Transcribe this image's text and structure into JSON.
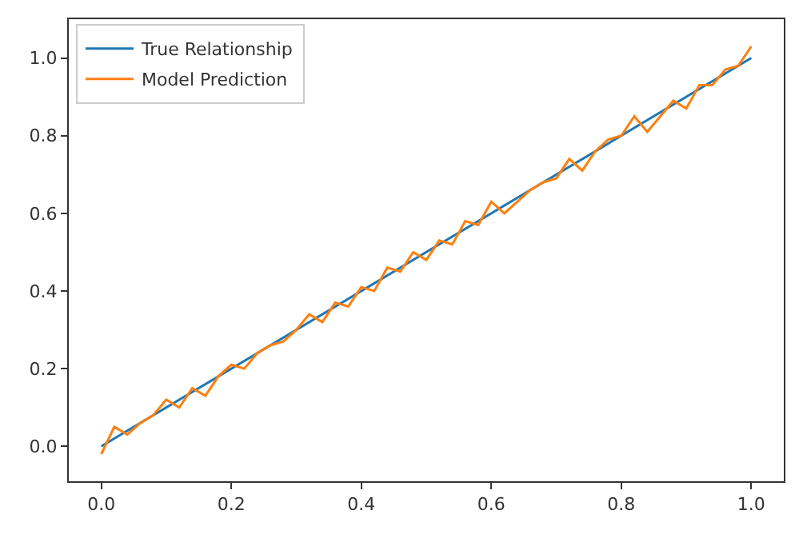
{
  "chart_data": {
    "type": "line",
    "xlim": [
      -0.05,
      1.05
    ],
    "ylim": [
      -0.09,
      1.1
    ],
    "xticks": [
      {
        "value": 0,
        "label": "0.0"
      },
      0.2,
      0.4,
      0.6,
      0.8,
      {
        "value": 1,
        "label": "1.0"
      }
    ],
    "yticks": [
      {
        "value": 0,
        "label": "0.0"
      },
      0.2,
      0.4,
      0.6,
      0.8,
      {
        "value": 1,
        "label": "1.0"
      }
    ],
    "grid": false,
    "legend": "top left",
    "marker": "none",
    "line_style": "solid",
    "series": [
      {
        "name": "True Relationship",
        "color": "#1f77b4",
        "x": [
          0,
          1
        ],
        "values": [
          0,
          1
        ]
      },
      {
        "name": "Model Prediction",
        "color": "#ff7f0e",
        "x": [
          0,
          0.02,
          0.04,
          0.06,
          0.08,
          0.1,
          0.12,
          0.14,
          0.16,
          0.18,
          0.2,
          0.22,
          0.24,
          0.26,
          0.28,
          0.3,
          0.32,
          0.34,
          0.36,
          0.38,
          0.4,
          0.42,
          0.44,
          0.46,
          0.48,
          0.5,
          0.52,
          0.54,
          0.56,
          0.58,
          0.6,
          0.62,
          0.64,
          0.66,
          0.68,
          0.7,
          0.72,
          0.74,
          0.76,
          0.78,
          0.8,
          0.82,
          0.84,
          0.86,
          0.88,
          0.9,
          0.92,
          0.94,
          0.96,
          0.98,
          1
        ],
        "values": [
          -0.02,
          0.05,
          0.03,
          0.06,
          0.08,
          0.12,
          0.1,
          0.15,
          0.13,
          0.18,
          0.21,
          0.2,
          0.24,
          0.26,
          0.27,
          0.3,
          0.34,
          0.32,
          0.37,
          0.36,
          0.41,
          0.4,
          0.46,
          0.45,
          0.5,
          0.48,
          0.53,
          0.52,
          0.58,
          0.57,
          0.63,
          0.6,
          0.63,
          0.66,
          0.68,
          0.69,
          0.74,
          0.71,
          0.76,
          0.79,
          0.8,
          0.85,
          0.81,
          0.85,
          0.89,
          0.87,
          0.93,
          0.93,
          0.97,
          0.98,
          1.03
        ]
      }
    ]
  }
}
